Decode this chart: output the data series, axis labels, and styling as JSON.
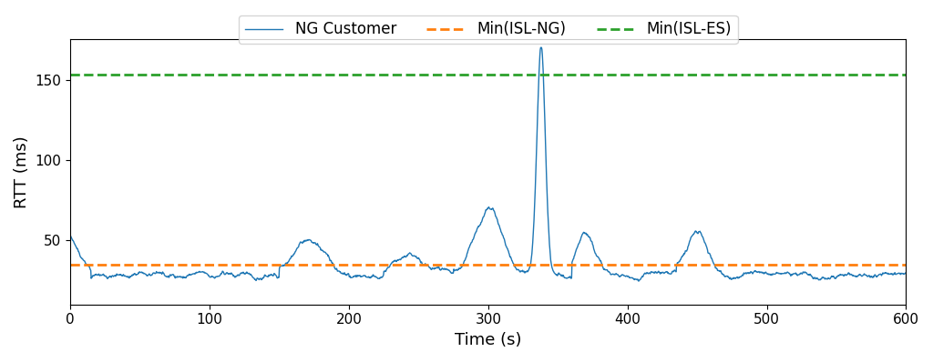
{
  "xlabel": "Time (s)",
  "ylabel": "RTT (ms)",
  "xlim": [
    0,
    600
  ],
  "ylim": [
    10,
    175
  ],
  "yticks": [
    50,
    100,
    150
  ],
  "xticks": [
    0,
    100,
    200,
    300,
    400,
    500,
    600
  ],
  "min_isl_ng": 35,
  "min_isl_es": 153,
  "line_color": "#1f77b4",
  "orange_color": "#ff7f0e",
  "green_color": "#2ca02c",
  "legend_labels": [
    "NG Customer",
    "Min(ISL-NG)",
    "Min(ISL-ES)"
  ],
  "figsize": [
    10.24,
    3.98
  ],
  "dpi": 100
}
